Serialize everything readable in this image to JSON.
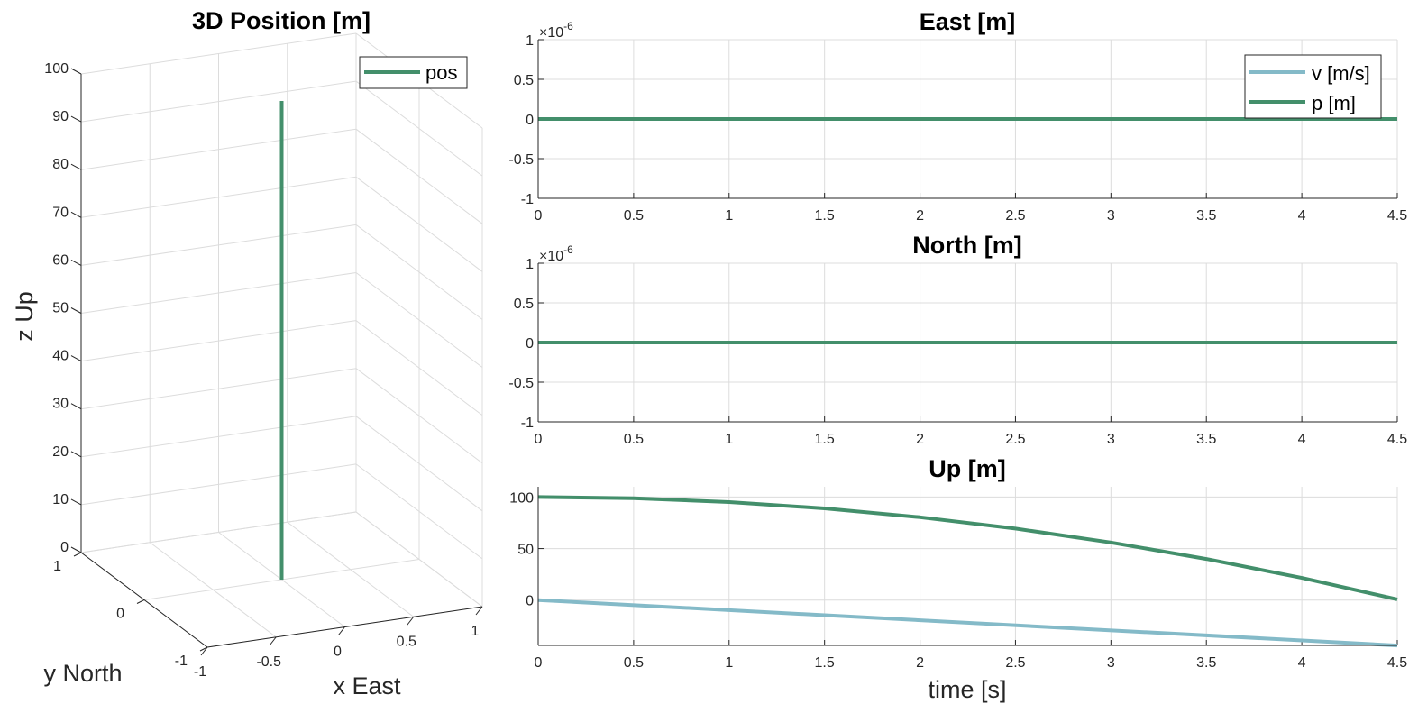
{
  "colors": {
    "position": "#438f6b",
    "velocity": "#84bac8",
    "grid": "#dcdcdc",
    "axis": "#262626"
  },
  "chart_data": [
    {
      "id": "pos3d",
      "type": "line3d",
      "title": "3D Position [m]",
      "xlabel": "x East",
      "ylabel": "y North",
      "zlabel": "z Up",
      "xlim": [
        -1,
        1
      ],
      "ylim": [
        -1,
        1
      ],
      "zlim": [
        0,
        100
      ],
      "xticks": [
        {
          "value": -1,
          "label": "-1"
        },
        {
          "value": -0.5,
          "label": "-0.5"
        },
        {
          "value": 0,
          "label": "0"
        },
        {
          "value": 0.5,
          "label": "0.5"
        },
        {
          "value": 1,
          "label": "1"
        }
      ],
      "yticks": [
        {
          "value": -1,
          "label": "-1"
        },
        {
          "value": 0,
          "label": "0"
        },
        {
          "value": 1,
          "label": "1"
        }
      ],
      "zticks": [
        {
          "value": 0,
          "label": "0"
        },
        {
          "value": 10,
          "label": "10"
        },
        {
          "value": 20,
          "label": "20"
        },
        {
          "value": 30,
          "label": "30"
        },
        {
          "value": 40,
          "label": "40"
        },
        {
          "value": 50,
          "label": "50"
        },
        {
          "value": 60,
          "label": "60"
        },
        {
          "value": 70,
          "label": "70"
        },
        {
          "value": 80,
          "label": "80"
        },
        {
          "value": 90,
          "label": "90"
        },
        {
          "value": 100,
          "label": "100"
        }
      ],
      "grid": true,
      "legend": {
        "position": "top-right",
        "entries": [
          "pos"
        ]
      },
      "series": [
        {
          "name": "pos",
          "color": "#438f6b",
          "points": [
            {
              "x": 0,
              "y": 0,
              "z": 0
            },
            {
              "x": 0,
              "y": 0,
              "z": 100
            }
          ]
        }
      ]
    },
    {
      "id": "east",
      "type": "line",
      "title": "East [m]",
      "xlim": [
        0,
        4.5
      ],
      "ylim": [
        -1,
        1
      ],
      "exponent": "×10",
      "exponent_power": "-6",
      "xticks": [
        "0",
        "0.5",
        "1",
        "1.5",
        "2",
        "2.5",
        "3",
        "3.5",
        "4",
        "4.5"
      ],
      "yticks": [
        {
          "value": -1,
          "label": "-1"
        },
        {
          "value": -0.5,
          "label": "-0.5"
        },
        {
          "value": 0,
          "label": "0"
        },
        {
          "value": 0.5,
          "label": "0.5"
        },
        {
          "value": 1,
          "label": "1"
        }
      ],
      "grid": true,
      "legend": {
        "position": "top-right",
        "entries": [
          "v [m/s]",
          "p [m]"
        ]
      },
      "series": [
        {
          "name": "v [m/s]",
          "color": "#84bac8",
          "x": [
            0,
            4.5
          ],
          "y": [
            0,
            0
          ]
        },
        {
          "name": "p [m]",
          "color": "#438f6b",
          "x": [
            0,
            4.5
          ],
          "y": [
            0,
            0
          ]
        }
      ]
    },
    {
      "id": "north",
      "type": "line",
      "title": "North [m]",
      "xlim": [
        0,
        4.5
      ],
      "ylim": [
        -1,
        1
      ],
      "exponent": "×10",
      "exponent_power": "-6",
      "xticks": [
        "0",
        "0.5",
        "1",
        "1.5",
        "2",
        "2.5",
        "3",
        "3.5",
        "4",
        "4.5"
      ],
      "yticks": [
        {
          "value": -1,
          "label": "-1"
        },
        {
          "value": -0.5,
          "label": "-0.5"
        },
        {
          "value": 0,
          "label": "0"
        },
        {
          "value": 0.5,
          "label": "0.5"
        },
        {
          "value": 1,
          "label": "1"
        }
      ],
      "grid": true,
      "series": [
        {
          "name": "v [m/s]",
          "color": "#84bac8",
          "x": [
            0,
            4.5
          ],
          "y": [
            0,
            0
          ]
        },
        {
          "name": "p [m]",
          "color": "#438f6b",
          "x": [
            0,
            4.5
          ],
          "y": [
            0,
            0
          ]
        }
      ]
    },
    {
      "id": "up",
      "type": "line",
      "title": "Up [m]",
      "xlabel": "time [s]",
      "xlim": [
        0,
        4.5
      ],
      "ylim": [
        -44,
        110
      ],
      "xticks": [
        "0",
        "0.5",
        "1",
        "1.5",
        "2",
        "2.5",
        "3",
        "3.5",
        "4",
        "4.5"
      ],
      "yticks": [
        {
          "value": 0,
          "label": "0"
        },
        {
          "value": 50,
          "label": "50"
        },
        {
          "value": 100,
          "label": "100"
        }
      ],
      "grid": true,
      "series": [
        {
          "name": "p [m]",
          "color": "#438f6b",
          "x": [
            0,
            0.5,
            1,
            1.5,
            2,
            2.5,
            3,
            3.5,
            4,
            4.5
          ],
          "y": [
            100,
            98.8,
            95.1,
            89,
            80.4,
            69.4,
            55.9,
            39.9,
            21.5,
            0.7
          ]
        },
        {
          "name": "v [m/s]",
          "color": "#84bac8",
          "x": [
            0,
            4.5
          ],
          "y": [
            0,
            -44.1
          ]
        }
      ]
    }
  ]
}
